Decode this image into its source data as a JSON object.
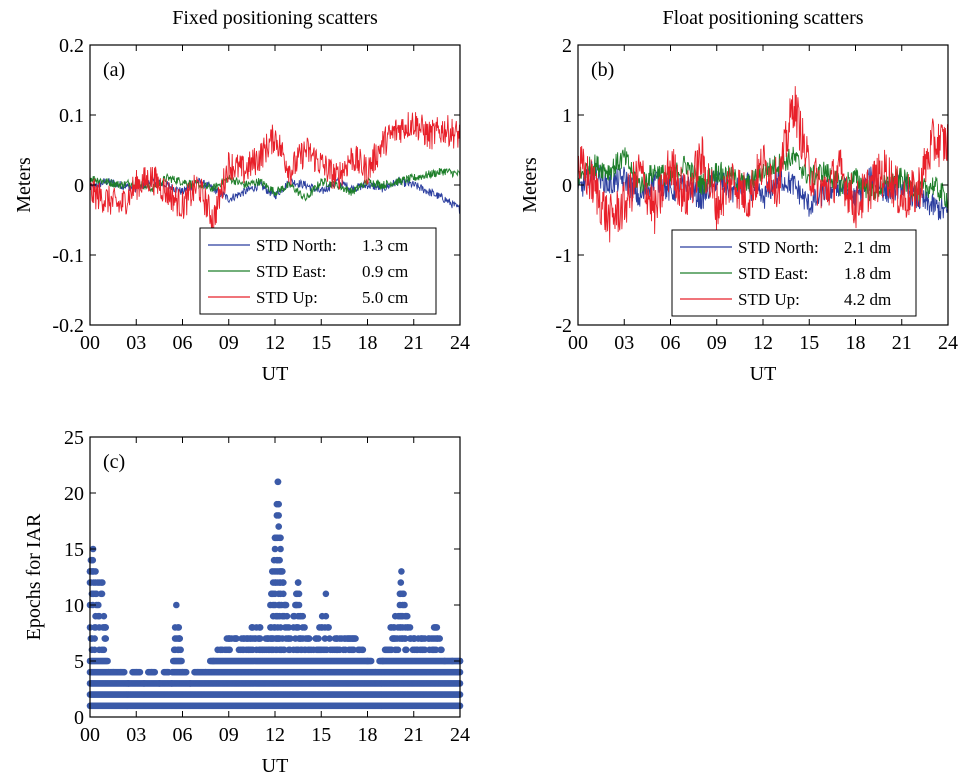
{
  "chart_data": [
    {
      "type": "line",
      "panel_label": "(a)",
      "title": "Fixed positioning scatters",
      "xlabel": "UT",
      "ylabel": "Meters",
      "xlim": [
        0,
        24
      ],
      "ylim": [
        -0.2,
        0.2
      ],
      "xticks": [
        0,
        3,
        6,
        9,
        12,
        15,
        18,
        21,
        24
      ],
      "xticklabels": [
        "00",
        "03",
        "06",
        "09",
        "12",
        "15",
        "18",
        "21",
        "24"
      ],
      "yticks": [
        -0.2,
        -0.1,
        0,
        0.1,
        0.2
      ],
      "yticklabels": [
        "-0.2",
        "-0.1",
        "0",
        "0.1",
        "0.2"
      ],
      "legend_position": "bottom-right",
      "series": [
        {
          "name": "STD North:",
          "value_text": "1.3 cm",
          "color": "#2b3e9f",
          "x": [
            0,
            1,
            2,
            3,
            4,
            5,
            6,
            7,
            8,
            9,
            10,
            11,
            12,
            13,
            14,
            15,
            16,
            17,
            18,
            19,
            20,
            21,
            22,
            23,
            24
          ],
          "y": [
            -0.005,
            0.005,
            0.0,
            -0.005,
            0.005,
            0.0,
            -0.01,
            0.005,
            -0.005,
            -0.02,
            -0.01,
            0.0,
            -0.015,
            0.005,
            0.0,
            -0.01,
            0.005,
            -0.005,
            0.0,
            -0.005,
            0.005,
            0.0,
            -0.01,
            -0.02,
            -0.035
          ]
        },
        {
          "name": "STD East:",
          "value_text": "0.9 cm",
          "color": "#1e7f2a",
          "x": [
            0,
            1,
            2,
            3,
            4,
            5,
            6,
            7,
            8,
            9,
            10,
            11,
            12,
            13,
            14,
            15,
            16,
            17,
            18,
            19,
            20,
            21,
            22,
            23,
            24
          ],
          "y": [
            0.01,
            0.005,
            0.0,
            0.005,
            -0.005,
            0.01,
            0.005,
            0.0,
            -0.005,
            0.01,
            0.0,
            0.005,
            -0.01,
            0.0,
            -0.02,
            0.005,
            0.0,
            -0.01,
            0.005,
            0.0,
            0.005,
            0.01,
            0.015,
            0.02,
            0.015
          ]
        },
        {
          "name": "STD Up:",
          "value_text": "5.0 cm",
          "color": "#e8202a",
          "x": [
            0,
            1,
            2,
            3,
            4,
            5,
            6,
            7,
            8,
            9,
            10,
            11,
            12,
            13,
            14,
            15,
            16,
            17,
            18,
            19,
            20,
            21,
            22,
            23,
            24
          ],
          "y": [
            -0.01,
            -0.02,
            -0.03,
            0.0,
            0.01,
            -0.01,
            -0.03,
            0.0,
            -0.05,
            0.03,
            0.02,
            0.04,
            0.07,
            0.02,
            0.05,
            0.03,
            0.01,
            0.04,
            0.02,
            0.06,
            0.08,
            0.09,
            0.07,
            0.08,
            0.07
          ]
        }
      ]
    },
    {
      "type": "line",
      "panel_label": "(b)",
      "title": "Float positioning scatters",
      "xlabel": "UT",
      "ylabel": "Meters",
      "xlim": [
        0,
        24
      ],
      "ylim": [
        -2,
        2
      ],
      "xticks": [
        0,
        3,
        6,
        9,
        12,
        15,
        18,
        21,
        24
      ],
      "xticklabels": [
        "00",
        "03",
        "06",
        "09",
        "12",
        "15",
        "18",
        "21",
        "24"
      ],
      "yticks": [
        -2,
        -1,
        0,
        1,
        2
      ],
      "yticklabels": [
        "-2",
        "-1",
        "0",
        "1",
        "2"
      ],
      "legend_position": "bottom-right",
      "series": [
        {
          "name": "STD North:",
          "value_text": "2.1 dm",
          "color": "#2b3e9f",
          "x": [
            0,
            1,
            2,
            3,
            4,
            5,
            6,
            7,
            8,
            9,
            10,
            11,
            12,
            13,
            14,
            15,
            16,
            17,
            18,
            19,
            20,
            21,
            22,
            23,
            24
          ],
          "y": [
            -0.1,
            0.2,
            0.0,
            0.1,
            -0.2,
            0.1,
            -0.1,
            0.0,
            -0.2,
            0.1,
            -0.1,
            0.0,
            -0.2,
            0.1,
            0.0,
            -0.3,
            -0.1,
            0.0,
            -0.2,
            0.1,
            -0.1,
            0.0,
            -0.2,
            -0.3,
            -0.4
          ]
        },
        {
          "name": "STD East:",
          "value_text": "1.8 dm",
          "color": "#1e7f2a",
          "x": [
            0,
            1,
            2,
            3,
            4,
            5,
            6,
            7,
            8,
            9,
            10,
            11,
            12,
            13,
            14,
            15,
            16,
            17,
            18,
            19,
            20,
            21,
            22,
            23,
            24
          ],
          "y": [
            0.1,
            0.3,
            0.2,
            0.4,
            0.0,
            0.2,
            0.1,
            0.3,
            0.0,
            0.2,
            0.1,
            0.0,
            0.2,
            0.3,
            0.4,
            0.1,
            0.2,
            0.0,
            0.1,
            -0.1,
            0.0,
            0.1,
            -0.1,
            0.0,
            -0.2
          ]
        },
        {
          "name": "STD Up:",
          "value_text": "4.2 dm",
          "color": "#e8202a",
          "x": [
            0,
            1,
            2,
            3,
            4,
            5,
            6,
            7,
            8,
            9,
            10,
            11,
            12,
            13,
            14,
            15,
            16,
            17,
            18,
            19,
            20,
            21,
            22,
            23,
            24
          ],
          "y": [
            0.3,
            0.0,
            -0.5,
            -0.3,
            0.2,
            -0.4,
            0.3,
            -0.2,
            0.4,
            -0.3,
            0.1,
            -0.2,
            0.3,
            0.0,
            1.2,
            0.2,
            -0.1,
            0.2,
            -0.3,
            0.0,
            0.2,
            -0.2,
            -0.1,
            0.6,
            0.6
          ]
        }
      ]
    },
    {
      "type": "scatter",
      "panel_label": "(c)",
      "xlabel": "UT",
      "ylabel": "Epochs for IAR",
      "xlim": [
        0,
        24
      ],
      "ylim": [
        0,
        25
      ],
      "xticks": [
        0,
        3,
        6,
        9,
        12,
        15,
        18,
        21,
        24
      ],
      "xticklabels": [
        "00",
        "03",
        "06",
        "09",
        "12",
        "15",
        "18",
        "21",
        "24"
      ],
      "yticks": [
        0,
        5,
        10,
        15,
        20,
        25
      ],
      "yticklabels": [
        "0",
        "5",
        "10",
        "15",
        "20",
        "25"
      ],
      "color": "#3b5aa8",
      "upper_envelope": {
        "x": [
          0,
          0.2,
          0.5,
          0.8,
          1.0,
          1.2,
          1.5,
          2.0,
          2.5,
          3.0,
          3.5,
          4.0,
          4.5,
          5.0,
          5.3,
          5.6,
          5.8,
          6.0,
          6.5,
          7.0,
          7.5,
          8.0,
          8.5,
          9.0,
          9.5,
          10.0,
          10.5,
          11.0,
          11.5,
          12.0,
          12.2,
          12.5,
          13.0,
          13.5,
          14.0,
          14.5,
          15.0,
          15.3,
          15.6,
          16.0,
          16.5,
          17.0,
          17.5,
          18.0,
          18.5,
          19.0,
          19.5,
          20.0,
          20.2,
          20.5,
          21.0,
          21.5,
          22.0,
          22.5,
          23.0,
          23.5,
          24.0
        ],
        "y": [
          13,
          15,
          12,
          12,
          8,
          4,
          4,
          4,
          3,
          4,
          3,
          4,
          3,
          4,
          3,
          10,
          7,
          4,
          3,
          4,
          4,
          5,
          6,
          7,
          7,
          7,
          8,
          8,
          7,
          16,
          21,
          12,
          7,
          12,
          7,
          6,
          8,
          11,
          6,
          7,
          7,
          7,
          6,
          5,
          4,
          5,
          8,
          9,
          13,
          9,
          7,
          7,
          7,
          8,
          5,
          5,
          5
        ]
      },
      "min_value": 1
    }
  ]
}
